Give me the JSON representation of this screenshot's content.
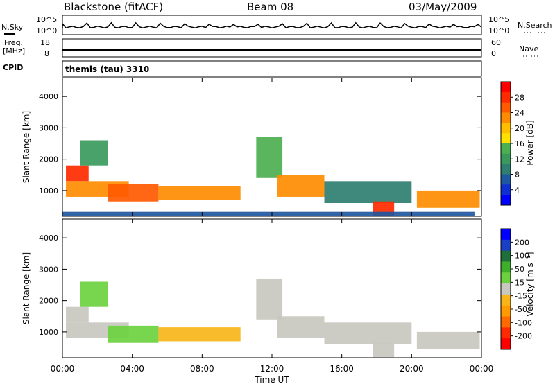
{
  "header": {
    "station": "Blackstone (fitACF)",
    "beam": "Beam 08",
    "date": "03/May/2009"
  },
  "noise_panel": {
    "left_label": "N.Sky",
    "right_label": "N.Search",
    "left_ticks": [
      "10^5",
      "10^0"
    ],
    "right_ticks": [
      "10^5",
      "10^0"
    ]
  },
  "freq_panel": {
    "left_label_1": "Freq.",
    "left_label_2": "[MHz]",
    "left_ticks": [
      "18",
      "8"
    ],
    "right_label": "Nave",
    "right_ticks": [
      "60",
      "0"
    ],
    "cpid_label": "CPID",
    "mode_text": "themis (tau) 3310"
  },
  "colorbars": {
    "power": {
      "label": "Power [dB]",
      "ticks": [
        "28",
        "24",
        "20",
        "16",
        "12",
        "8",
        "4"
      ],
      "colors": [
        "#ff0000",
        "#ff2a00",
        "#ff5a00",
        "#ff8c00",
        "#ffbf00",
        "#ffe000",
        "#4caf50",
        "#3a9a5c",
        "#2e7f70",
        "#1f57a0",
        "#0f2fd0",
        "#0000ff"
      ]
    },
    "velocity": {
      "label": "Velocity [m s⁻¹]",
      "ticks": [
        "200",
        "100",
        "50",
        "15",
        "-15",
        "-50",
        "-100",
        "-200"
      ],
      "colors": [
        "#0000ff",
        "#1a3fc4",
        "#1f6f3a",
        "#3fae2a",
        "#6bd13f",
        "#c8c8c0",
        "#f7b51a",
        "#ff9a00",
        "#ff6a00",
        "#ff2a00",
        "#ff0000"
      ]
    }
  },
  "x_axis": {
    "label": "Time UT",
    "ticks": [
      "00:00",
      "04:00",
      "08:00",
      "12:00",
      "16:00",
      "20:00",
      "00:00"
    ]
  },
  "chart_data": [
    {
      "type": "heatmap",
      "name": "power",
      "ylabel": "Slant Range [km]",
      "yticks": [
        "4000",
        "3000",
        "2000",
        "1000"
      ],
      "xlim_hours": [
        0,
        24
      ],
      "ylim_km": [
        180,
        4600
      ],
      "color_range": [
        0,
        30
      ],
      "color_unit": "dB",
      "regions": [
        {
          "t": [
            0.2,
            1.5
          ],
          "r": [
            1300,
            1800
          ],
          "value": 26
        },
        {
          "t": [
            0.2,
            3.8
          ],
          "r": [
            800,
            1300
          ],
          "value": 22
        },
        {
          "t": [
            1.0,
            2.6
          ],
          "r": [
            1800,
            2600
          ],
          "value": 12
        },
        {
          "t": [
            2.6,
            5.5
          ],
          "r": [
            650,
            1200
          ],
          "value": 24
        },
        {
          "t": [
            5.5,
            10.2
          ],
          "r": [
            700,
            1150
          ],
          "value": 20
        },
        {
          "t": [
            11.1,
            12.6
          ],
          "r": [
            1400,
            2700
          ],
          "value": 14
        },
        {
          "t": [
            12.3,
            15.0
          ],
          "r": [
            800,
            1500
          ],
          "value": 20
        },
        {
          "t": [
            15.0,
            20.0
          ],
          "r": [
            600,
            1300
          ],
          "value": 8
        },
        {
          "t": [
            17.8,
            19.0
          ],
          "r": [
            200,
            650
          ],
          "value": 26
        },
        {
          "t": [
            20.3,
            23.9
          ],
          "r": [
            450,
            1000
          ],
          "value": 22
        },
        {
          "t": [
            0.0,
            23.6
          ],
          "r": [
            180,
            320
          ],
          "value": 6
        }
      ]
    },
    {
      "type": "heatmap",
      "name": "velocity",
      "ylabel": "Slant Range [km]",
      "yticks": [
        "4000",
        "3000",
        "2000",
        "1000"
      ],
      "xlim_hours": [
        0,
        24
      ],
      "ylim_km": [
        180,
        4600
      ],
      "color_range": [
        -200,
        200
      ],
      "color_unit": "m s-1",
      "regions": [
        {
          "t": [
            0.2,
            1.5
          ],
          "r": [
            1300,
            1800
          ],
          "value": 0
        },
        {
          "t": [
            0.2,
            3.8
          ],
          "r": [
            800,
            1300
          ],
          "value": 5
        },
        {
          "t": [
            1.0,
            2.6
          ],
          "r": [
            1800,
            2600
          ],
          "value": 40
        },
        {
          "t": [
            2.6,
            5.5
          ],
          "r": [
            650,
            1200
          ],
          "value": 30
        },
        {
          "t": [
            5.5,
            10.2
          ],
          "r": [
            700,
            1150
          ],
          "value": -40
        },
        {
          "t": [
            11.1,
            12.6
          ],
          "r": [
            1400,
            2700
          ],
          "value": 0
        },
        {
          "t": [
            12.3,
            15.0
          ],
          "r": [
            800,
            1500
          ],
          "value": 0
        },
        {
          "t": [
            15.0,
            20.0
          ],
          "r": [
            600,
            1300
          ],
          "value": 0
        },
        {
          "t": [
            17.8,
            19.0
          ],
          "r": [
            200,
            650
          ],
          "value": 0
        },
        {
          "t": [
            20.3,
            23.9
          ],
          "r": [
            450,
            1000
          ],
          "value": 0
        }
      ]
    }
  ]
}
